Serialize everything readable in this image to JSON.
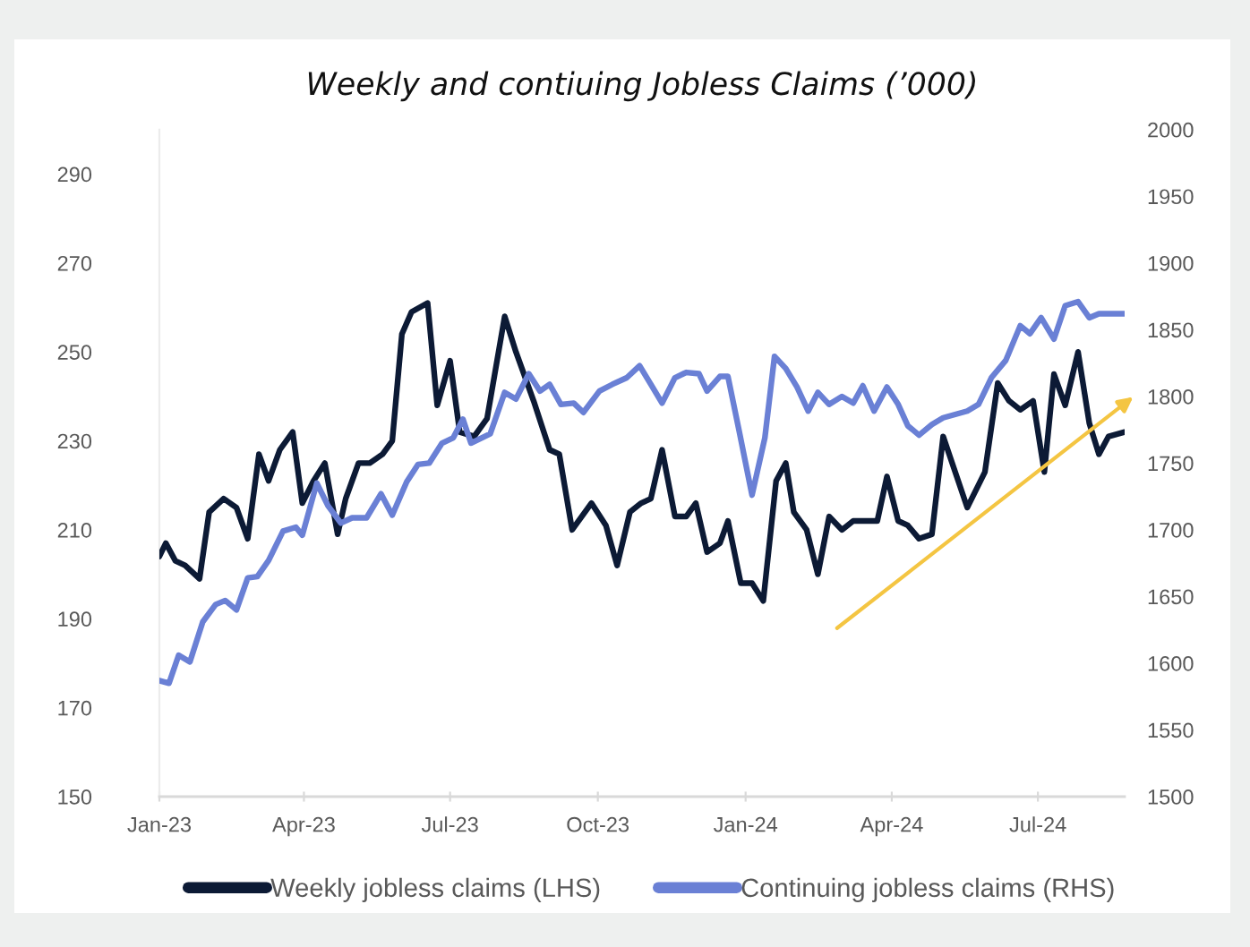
{
  "chart_data": {
    "type": "line",
    "title": "Weekly and contiuing Jobless Claims (’000)",
    "series": [
      {
        "name": "Weekly jobless claims (LHS)",
        "color": "#0c1a35",
        "x": [
          "2023-01-01",
          "2023-01-05",
          "2023-01-11",
          "2023-01-17",
          "2023-01-26",
          "2023-02-01",
          "2023-02-10",
          "2023-02-18",
          "2023-02-25",
          "2023-03-04",
          "2023-03-10",
          "2023-03-17",
          "2023-03-25",
          "2023-03-31",
          "2023-04-07",
          "2023-04-14",
          "2023-04-22",
          "2023-04-27",
          "2023-05-05",
          "2023-05-12",
          "2023-05-20",
          "2023-05-26",
          "2023-06-01",
          "2023-06-07",
          "2023-06-17",
          "2023-06-23",
          "2023-07-01",
          "2023-07-07",
          "2023-07-16",
          "2023-07-24",
          "2023-08-04",
          "2023-08-11",
          "2023-08-22",
          "2023-09-01",
          "2023-09-07",
          "2023-09-15",
          "2023-09-27",
          "2023-10-06",
          "2023-10-13",
          "2023-10-21",
          "2023-10-28",
          "2023-11-03",
          "2023-11-10",
          "2023-11-18",
          "2023-11-25",
          "2023-12-01",
          "2023-12-08",
          "2023-12-16",
          "2023-12-21",
          "2023-12-29",
          "2024-01-05",
          "2024-01-12",
          "2024-01-20",
          "2024-01-26",
          "2024-01-31",
          "2024-02-08",
          "2024-02-15",
          "2024-02-22",
          "2024-03-01",
          "2024-03-08",
          "2024-03-23",
          "2024-03-29",
          "2024-04-05",
          "2024-04-11",
          "2024-04-18",
          "2024-04-26",
          "2024-05-03",
          "2024-05-18",
          "2024-05-29",
          "2024-06-06",
          "2024-06-13",
          "2024-06-20",
          "2024-06-28",
          "2024-07-05",
          "2024-07-11",
          "2024-07-18",
          "2024-07-26",
          "2024-08-02",
          "2024-08-08",
          "2024-08-14",
          "2024-08-24"
        ],
        "values": [
          204,
          207,
          203,
          202,
          199,
          214,
          217,
          215,
          208,
          227,
          221,
          228,
          232,
          216,
          221,
          225,
          209,
          217,
          225,
          225,
          227,
          230,
          254,
          259,
          261,
          238,
          248,
          232,
          231,
          235,
          258,
          250,
          239,
          228,
          227,
          210,
          216,
          211,
          202,
          214,
          216,
          217,
          228,
          213,
          213,
          216,
          205,
          207,
          212,
          198,
          198,
          194,
          221,
          225,
          214,
          210,
          200,
          213,
          210,
          212,
          212,
          222,
          212,
          211,
          208,
          209,
          231,
          215,
          223,
          243,
          239,
          237,
          239,
          223,
          245,
          238,
          250,
          234,
          227,
          231,
          232
        ]
      },
      {
        "name": "Continuing jobless claims (RHS)",
        "color": "#6a80d5",
        "axis": "y2",
        "x": [
          "2023-01-01",
          "2023-01-07",
          "2023-01-13",
          "2023-01-20",
          "2023-01-28",
          "2023-02-05",
          "2023-02-11",
          "2023-02-18",
          "2023-02-25",
          "2023-03-03",
          "2023-03-10",
          "2023-03-19",
          "2023-03-27",
          "2023-03-31",
          "2023-04-09",
          "2023-04-16",
          "2023-04-24",
          "2023-05-01",
          "2023-05-10",
          "2023-05-19",
          "2023-05-26",
          "2023-06-04",
          "2023-06-11",
          "2023-06-18",
          "2023-06-26",
          "2023-07-03",
          "2023-07-09",
          "2023-07-14",
          "2023-07-26",
          "2023-08-04",
          "2023-08-11",
          "2023-08-19",
          "2023-08-26",
          "2023-09-01",
          "2023-09-08",
          "2023-09-16",
          "2023-09-22",
          "2023-10-02",
          "2023-10-10",
          "2023-10-19",
          "2023-10-27",
          "2023-11-03",
          "2023-11-10",
          "2023-11-18",
          "2023-11-25",
          "2023-12-03",
          "2023-12-08",
          "2023-12-16",
          "2023-12-21",
          "2023-12-28",
          "2024-01-05",
          "2024-01-13",
          "2024-01-19",
          "2024-01-26",
          "2024-02-02",
          "2024-02-09",
          "2024-02-15",
          "2024-02-22",
          "2024-03-01",
          "2024-03-08",
          "2024-03-14",
          "2024-03-21",
          "2024-03-29",
          "2024-04-05",
          "2024-04-11",
          "2024-04-18",
          "2024-04-26",
          "2024-05-03",
          "2024-05-18",
          "2024-05-25",
          "2024-06-02",
          "2024-06-11",
          "2024-06-20",
          "2024-06-26",
          "2024-07-03",
          "2024-07-11",
          "2024-07-18",
          "2024-07-26",
          "2024-08-02",
          "2024-08-08",
          "2024-08-24"
        ],
        "values": [
          1587,
          1585,
          1606,
          1601,
          1631,
          1644,
          1647,
          1640,
          1664,
          1665,
          1677,
          1699,
          1702,
          1696,
          1735,
          1718,
          1705,
          1709,
          1709,
          1727,
          1711,
          1736,
          1749,
          1750,
          1765,
          1769,
          1783,
          1765,
          1772,
          1803,
          1798,
          1817,
          1804,
          1809,
          1794,
          1795,
          1788,
          1804,
          1809,
          1814,
          1823,
          1809,
          1795,
          1814,
          1818,
          1817,
          1804,
          1815,
          1815,
          1774,
          1726,
          1769,
          1830,
          1821,
          1807,
          1789,
          1803,
          1794,
          1800,
          1795,
          1808,
          1789,
          1807,
          1794,
          1778,
          1771,
          1779,
          1784,
          1789,
          1794,
          1814,
          1827,
          1853,
          1847,
          1859,
          1843,
          1868,
          1871,
          1859,
          1862,
          1862
        ]
      }
    ],
    "xlim": [
      "2023-01-01",
      "2024-08-24"
    ],
    "xticks": [
      {
        "value": "2023-01-01",
        "label": "Jan-23"
      },
      {
        "value": "2023-04-01",
        "label": "Apr-23"
      },
      {
        "value": "2023-07-01",
        "label": "Jul-23"
      },
      {
        "value": "2023-10-01",
        "label": "Oct-23"
      },
      {
        "value": "2024-01-01",
        "label": "Jan-24"
      },
      {
        "value": "2024-04-01",
        "label": "Apr-24"
      },
      {
        "value": "2024-07-01",
        "label": "Jul-24"
      }
    ],
    "ylim": [
      150,
      300
    ],
    "yticks": [
      150,
      170,
      190,
      210,
      230,
      250,
      270,
      290
    ],
    "y2lim": [
      1500,
      2000
    ],
    "y2ticks": [
      1500,
      1550,
      1600,
      1650,
      1700,
      1750,
      1800,
      1850,
      1900,
      1950,
      2000
    ],
    "legend": "bottom"
  }
}
